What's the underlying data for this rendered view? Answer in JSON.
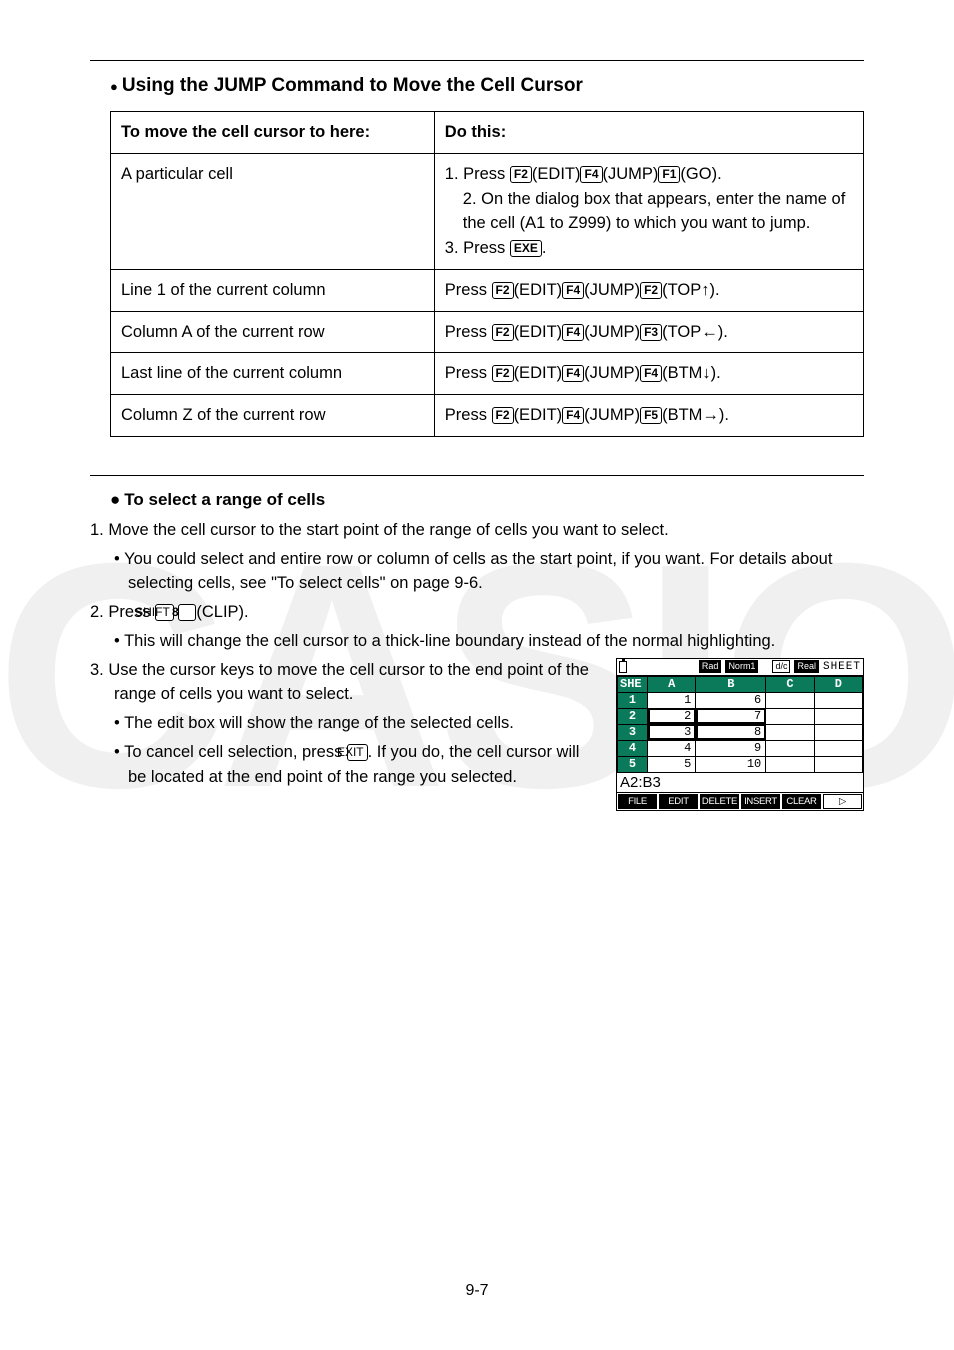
{
  "watermark": "CASIO",
  "section_title": "Using the JUMP Command to Move the Cell Cursor",
  "table": {
    "header_left": "To move the cell cursor to here:",
    "header_right": "Do this:",
    "rows": [
      {
        "left": "A particular cell",
        "right_lines": [
          {
            "prefix": "1. Press ",
            "keys": [
              [
                "F2",
                "(EDIT)"
              ],
              [
                "F4",
                "(JUMP)"
              ],
              [
                "F1",
                "(GO)."
              ]
            ],
            "suffix": ""
          },
          {
            "prefix": "2. On the dialog box that appears, enter the name of the cell (A1 to Z999) to which you want to jump.",
            "keys": [],
            "indent": true
          },
          {
            "prefix": "3. Press ",
            "keys": [
              [
                "EXE",
                "."
              ]
            ],
            "suffix": ""
          }
        ]
      },
      {
        "left": "Line 1 of the current column",
        "right_lines": [
          {
            "prefix": "Press ",
            "keys": [
              [
                "F2",
                "(EDIT)"
              ],
              [
                "F4",
                "(JUMP)"
              ],
              [
                "F2",
                "(TOP↑)."
              ]
            ],
            "suffix": ""
          }
        ]
      },
      {
        "left": "Column A of the current row",
        "right_lines": [
          {
            "prefix": "Press ",
            "keys": [
              [
                "F2",
                "(EDIT)"
              ],
              [
                "F4",
                "(JUMP)"
              ],
              [
                "F3",
                "(TOP←)."
              ]
            ],
            "suffix": ""
          }
        ]
      },
      {
        "left": "Last line of the current column",
        "right_lines": [
          {
            "prefix": "Press ",
            "keys": [
              [
                "F2",
                "(EDIT)"
              ],
              [
                "F4",
                "(JUMP)"
              ],
              [
                "F4",
                "(BTM↓)."
              ]
            ],
            "suffix": ""
          }
        ]
      },
      {
        "left": "Column Z of the current row",
        "right_lines": [
          {
            "prefix": "Press ",
            "keys": [
              [
                "F2",
                "(EDIT)"
              ],
              [
                "F4",
                "(JUMP)"
              ],
              [
                "F5",
                "(BTM→)."
              ]
            ],
            "suffix": ""
          }
        ]
      }
    ]
  },
  "subheading": "To select a range of cells",
  "steps": {
    "s1": "1. Move the cell cursor to the start point of the range of cells you want to select.",
    "s1_bullet": "You could select and entire row or column of cells as the start point, if you want. For details about selecting cells, see \"To select cells\" on page 9-6.",
    "s2_prefix": "2. Press ",
    "s2_key1": "SHIFT",
    "s2_key2": "8",
    "s2_suffix": "(CLIP).",
    "s2_bullet": "This will change the cell cursor to a thick-line boundary instead of the normal highlighting.",
    "s3": "3. Use the cursor keys to move the cell cursor to the end point of the range of cells you want to select.",
    "s3_b1": "The edit box will show the range of the selected cells.",
    "s3_b2_prefix": "To cancel cell selection, press ",
    "s3_b2_key": "EXIT",
    "s3_b2_suffix": ". If you do, the cell cursor will be located at the end point of the range you selected."
  },
  "calc": {
    "badges": [
      "Rad",
      "Norm1",
      "d/c",
      "Real"
    ],
    "sheet_label": "SHEET",
    "corner": "SHE",
    "cols": [
      "A",
      "B",
      "C",
      "D"
    ],
    "rows": [
      {
        "n": "1",
        "a": "1",
        "b": "6"
      },
      {
        "n": "2",
        "a": "2",
        "b": "7"
      },
      {
        "n": "3",
        "a": "3",
        "b": "8"
      },
      {
        "n": "4",
        "a": "4",
        "b": "9"
      },
      {
        "n": "5",
        "a": "5",
        "b": "10"
      }
    ],
    "ref": "A2:B3",
    "fkeys": [
      "FILE",
      "EDIT",
      "DELETE",
      "INSERT",
      "CLEAR",
      "▷"
    ],
    "colors": {
      "header_bg": "#0b7a5a",
      "header_fg": "#ffffff"
    }
  },
  "page_number": "9-7"
}
